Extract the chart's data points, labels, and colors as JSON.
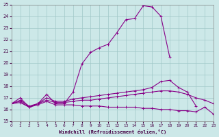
{
  "background_color": "#cce8e8",
  "grid_color": "#a0c8c8",
  "line_color": "#880088",
  "xlabel": "Windchill (Refroidissement éolien,°C)",
  "ylim": [
    15,
    25
  ],
  "xlim": [
    0,
    23
  ],
  "yticks": [
    15,
    16,
    17,
    18,
    19,
    20,
    21,
    22,
    23,
    24,
    25
  ],
  "xticks": [
    0,
    1,
    2,
    3,
    4,
    5,
    6,
    7,
    8,
    9,
    10,
    11,
    12,
    13,
    14,
    15,
    16,
    17,
    18,
    19,
    20,
    21,
    22,
    23
  ],
  "series": [
    {
      "x": [
        0,
        1,
        2,
        3,
        4,
        5,
        6,
        7,
        8,
        9,
        10,
        11,
        12,
        13,
        14,
        15,
        16,
        17,
        18
      ],
      "y": [
        16.5,
        16.7,
        16.2,
        16.5,
        17.3,
        16.5,
        16.5,
        17.5,
        19.9,
        20.9,
        21.3,
        21.6,
        22.6,
        23.7,
        23.8,
        24.9,
        24.8,
        24.0,
        20.5
      ]
    },
    {
      "x": [
        0,
        1,
        2,
        3,
        4,
        5,
        6,
        7,
        8,
        9,
        10,
        11,
        12,
        13,
        14,
        15,
        16,
        17,
        18,
        19,
        20,
        21
      ],
      "y": [
        16.5,
        17.0,
        16.2,
        16.5,
        17.0,
        16.7,
        16.7,
        16.9,
        17.0,
        17.1,
        17.2,
        17.3,
        17.4,
        17.5,
        17.6,
        17.7,
        17.9,
        18.4,
        18.5,
        17.9,
        17.5,
        16.3
      ]
    },
    {
      "x": [
        0,
        1,
        2,
        3,
        4,
        5,
        6,
        7,
        8,
        9,
        10,
        11,
        12,
        13,
        14,
        15,
        16,
        17,
        18,
        19,
        20,
        21,
        22,
        23
      ],
      "y": [
        16.5,
        16.8,
        16.3,
        16.5,
        16.8,
        16.6,
        16.6,
        16.7,
        16.8,
        16.8,
        16.9,
        17.0,
        17.1,
        17.2,
        17.3,
        17.4,
        17.5,
        17.6,
        17.6,
        17.5,
        17.3,
        17.0,
        16.8,
        16.5
      ]
    },
    {
      "x": [
        0,
        1,
        2,
        3,
        4,
        5,
        6,
        7,
        8,
        9,
        10,
        11,
        12,
        13,
        14,
        15,
        16,
        17,
        18,
        19,
        20,
        21,
        22,
        23
      ],
      "y": [
        16.5,
        16.6,
        16.2,
        16.4,
        16.7,
        16.4,
        16.4,
        16.4,
        16.3,
        16.3,
        16.3,
        16.2,
        16.2,
        16.2,
        16.2,
        16.1,
        16.1,
        16.0,
        16.0,
        15.9,
        15.9,
        15.8,
        16.2,
        15.6
      ]
    }
  ]
}
